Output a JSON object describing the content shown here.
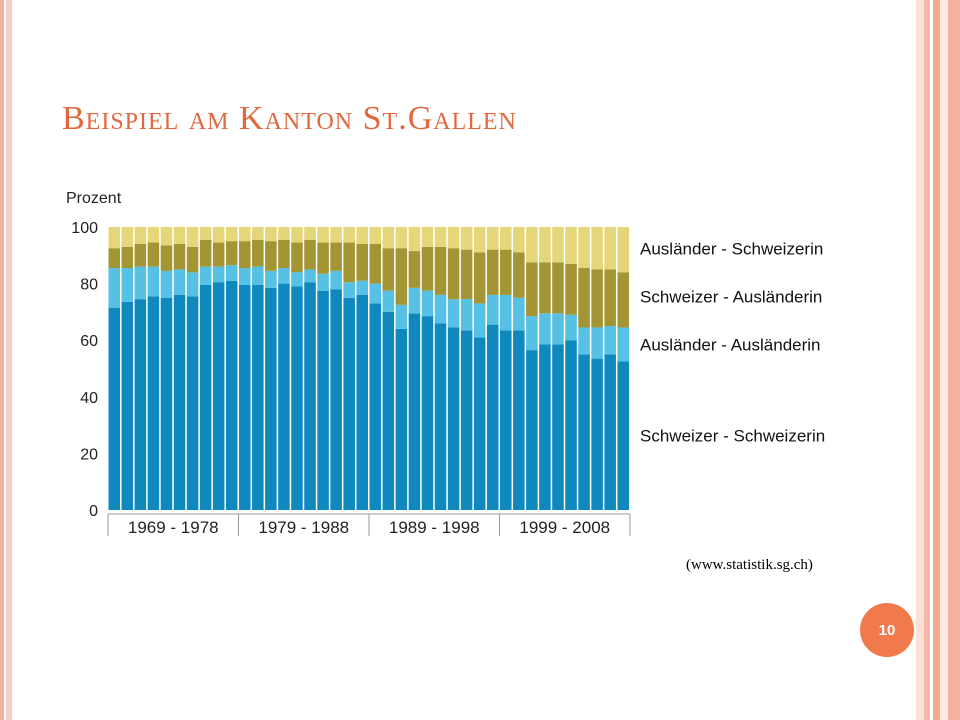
{
  "slide": {
    "title": "Beispiel am Kanton St.Gallen",
    "source": "(www.statistik.sg.ch)",
    "page_number": "10"
  },
  "colors": {
    "accent": "#e2673f",
    "badge": "#f07a4b"
  },
  "chart_data": {
    "type": "bar",
    "stacked": true,
    "ylabel": "Prozent",
    "ylim": [
      0,
      100
    ],
    "yticks": [
      0,
      20,
      40,
      60,
      80,
      100
    ],
    "x": [
      1969,
      1970,
      1971,
      1972,
      1973,
      1974,
      1975,
      1976,
      1977,
      1978,
      1979,
      1980,
      1981,
      1982,
      1983,
      1984,
      1985,
      1986,
      1987,
      1988,
      1989,
      1990,
      1991,
      1992,
      1993,
      1994,
      1995,
      1996,
      1997,
      1998,
      1999,
      2000,
      2001,
      2002,
      2003,
      2004,
      2005,
      2006,
      2007,
      2008
    ],
    "period_labels": [
      "1969 - 1978",
      "1979 - 1988",
      "1989 - 1998",
      "1999 - 2008"
    ],
    "legend_position": "right",
    "series": [
      {
        "name": "Schweizer - Schweizerin",
        "color": "#0f89bd",
        "values": [
          71.5,
          73.5,
          74.5,
          75.5,
          75,
          76,
          75.5,
          79.5,
          80.5,
          81,
          79.5,
          79.5,
          78.5,
          80,
          79,
          80.5,
          77.5,
          78,
          75,
          76,
          73,
          70,
          64,
          69.5,
          68.5,
          66,
          64.5,
          63.5,
          61,
          65.5,
          63.5,
          63.5,
          56.5,
          58.5,
          58.5,
          60,
          55,
          53.5,
          55,
          52.5
        ]
      },
      {
        "name": "Ausländer - Ausländerin",
        "color": "#56c1e4",
        "values": [
          14,
          12,
          11.5,
          10.5,
          9.5,
          9,
          8.5,
          6.5,
          5.5,
          5.5,
          6,
          6.5,
          6,
          5.5,
          5,
          4.5,
          6,
          6.5,
          5.5,
          5,
          7,
          7.5,
          8.5,
          9,
          9,
          10,
          10,
          11,
          12,
          10.5,
          12.5,
          11.5,
          12,
          11,
          11,
          9,
          9.5,
          11,
          10,
          12
        ]
      },
      {
        "name": "Schweizer - Ausländerin",
        "color": "#a39434",
        "values": [
          7,
          7.5,
          8,
          8.5,
          9,
          9,
          9,
          9.5,
          8.5,
          8.5,
          9.5,
          9.5,
          10.5,
          10,
          10.5,
          10.5,
          11,
          10,
          14,
          13,
          14,
          15,
          20,
          13,
          15.5,
          17,
          18,
          17.5,
          18,
          16,
          16,
          16,
          19,
          18,
          18,
          18,
          21,
          20.5,
          20,
          19.5
        ]
      },
      {
        "name": "Ausländer - Schweizerin",
        "color": "#e6d67a",
        "values": [
          7.5,
          7,
          6,
          5.5,
          6.5,
          6,
          7,
          4.5,
          5.5,
          5,
          5,
          4.5,
          5,
          4.5,
          5.5,
          4.5,
          5.5,
          5.5,
          5.5,
          6,
          6,
          7.5,
          7.5,
          8.5,
          7,
          7,
          7.5,
          8,
          9,
          8,
          8,
          9,
          12.5,
          12.5,
          12.5,
          13,
          14.5,
          15,
          15,
          16
        ]
      }
    ]
  }
}
